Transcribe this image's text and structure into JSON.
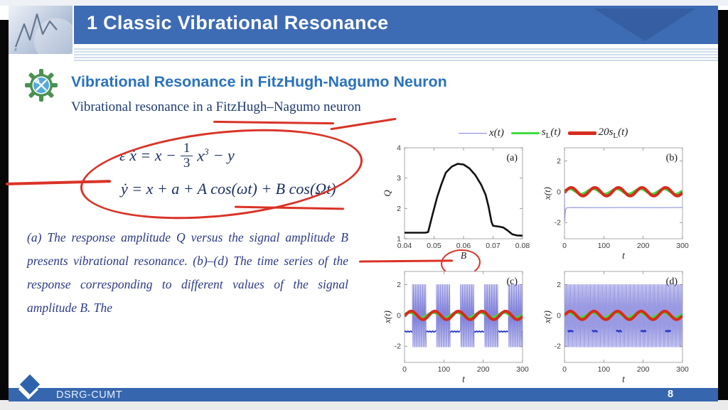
{
  "header": {
    "title": "1 Classic Vibrational Resonance"
  },
  "section": {
    "heading": "Vibrational Resonance in FitzHugh-Nagumo Neuron",
    "subheading": "Vibrational resonance in a FitzHugh–Nagumo neuron"
  },
  "equations": {
    "eq1_pre": "ε ẋ = x −",
    "eq1_num": "1",
    "eq1_den": "3",
    "eq1_base": "x",
    "eq1_sup": "3",
    "eq1_post": "− y",
    "eq2": "ẏ = x + a + A cos(ωt) + B cos(Ωt)"
  },
  "caption": "(a) The response amplitude Q versus the signal amplitude B presents vibrational resonance. (b)–(d) The time series of the response corresponding to different values of the signal amplitude B. The",
  "footer": {
    "label": "DSRG-CUMT",
    "page": "8"
  },
  "colors": {
    "header_blue": "#3e6cb4",
    "heading_blue": "#2a72be",
    "text_navy": "#1c3060",
    "caption_navy": "#2c3a85",
    "annotation_red": "#d93327",
    "footer_blue": "#3566ae",
    "series_blue": "#8585dc",
    "series_green": "#3edc3e",
    "series_red": "#d62d1e"
  },
  "legend": {
    "entries": [
      {
        "label": "x(t)",
        "color": "#8585dc",
        "width": 1.5
      },
      {
        "pre": "s",
        "sub": "L",
        "post": "(t)",
        "color": "#3edc3e",
        "width": 3.5
      },
      {
        "pre": "20s",
        "sub": "L",
        "post": "(t)",
        "color": "#d62d1e",
        "width": 4.5
      }
    ]
  },
  "chart_data": [
    {
      "id": "a",
      "type": "line",
      "panel_label": "(a)",
      "xlabel": "B",
      "ylabel": "Q",
      "xlim": [
        0.04,
        0.08
      ],
      "ylim": [
        1,
        4
      ],
      "xticks": [
        0.04,
        0.05,
        0.06,
        0.07,
        0.08
      ],
      "xtick_labels": [
        "0.04",
        "0.05",
        "0.06",
        "0.07",
        "0.08"
      ],
      "yticks": [
        1,
        2,
        3,
        4
      ],
      "ytick_labels": [
        "1",
        "2",
        "3",
        "4"
      ],
      "grid": false,
      "legend_position": "none",
      "series": [
        {
          "name": "Q vs B",
          "kind": "points",
          "color": "#111111",
          "width": 2.6,
          "x": [
            0.04,
            0.044,
            0.047,
            0.048,
            0.0495,
            0.051,
            0.0525,
            0.054,
            0.056,
            0.058,
            0.06,
            0.062,
            0.064,
            0.066,
            0.0675,
            0.0685,
            0.0695,
            0.07,
            0.072,
            0.0735,
            0.075,
            0.0765,
            0.078,
            0.08
          ],
          "y": [
            1.2,
            1.2,
            1.2,
            1.22,
            1.8,
            2.35,
            2.8,
            3.18,
            3.38,
            3.47,
            3.45,
            3.32,
            3.1,
            2.78,
            2.45,
            2.05,
            1.55,
            1.43,
            1.4,
            1.37,
            1.27,
            1.15,
            1.11,
            1.1
          ]
        }
      ]
    },
    {
      "id": "b",
      "type": "line",
      "panel_label": "(b)",
      "xlabel": "t",
      "ylabel": "x(t)",
      "xlim": [
        0,
        300
      ],
      "ylim": [
        -3.05,
        2.85
      ],
      "xticks": [
        0,
        100,
        200,
        300
      ],
      "xtick_labels": [
        "0",
        "100",
        "200",
        "300"
      ],
      "yticks": [
        -2,
        0,
        2
      ],
      "ytick_labels": [
        "-2",
        "0",
        "2"
      ],
      "grid": false,
      "legend_position": "none",
      "series": [
        {
          "name": "x(t)",
          "kind": "points",
          "color": "#8585dc",
          "width": 1,
          "x": [
            0,
            0.7,
            1.5,
            2.5,
            4,
            8,
            20,
            80,
            150,
            220,
            300
          ],
          "y": [
            -0.05,
            -1.88,
            -1.5,
            -1.2,
            -1.08,
            -1.03,
            -1.02,
            -1.03,
            -1.02,
            -1.03,
            -1.02
          ]
        },
        {
          "name": "sL(t)",
          "kind": "sine",
          "color": "#3edc3e",
          "width": 3.2,
          "amp": 0.16,
          "period": 60,
          "peak": 12,
          "mean": 0.02
        },
        {
          "name": "20sL(t)",
          "kind": "sine",
          "color": "#d62d1e",
          "width": 4.2,
          "amp": 0.27,
          "period": 60,
          "peak": 17,
          "mean": 0
        }
      ]
    },
    {
      "id": "c",
      "type": "line",
      "panel_label": "(c)",
      "xlabel": "t",
      "ylabel": "x(t)",
      "xlim": [
        0,
        300
      ],
      "ylim": [
        -3.05,
        2.85
      ],
      "xticks": [
        0,
        100,
        200,
        300
      ],
      "xtick_labels": [
        "0",
        "100",
        "200",
        "300"
      ],
      "yticks": [
        -2,
        0,
        2
      ],
      "ytick_labels": [
        "-2",
        "0",
        "2"
      ],
      "grid": false,
      "legend_position": "none",
      "series": [
        {
          "name": "x(t) quiescent baseline",
          "kind": "baseline",
          "color": "#2b3bc8",
          "width": 1.8,
          "y": -1.05,
          "segments": [
            [
              0,
              20
            ],
            [
              54,
              81
            ],
            [
              115,
              142
            ],
            [
              176,
              203
            ],
            [
              237,
              264
            ],
            [
              298,
              300
            ]
          ]
        },
        {
          "name": "x(t) spiking bursts",
          "kind": "bursts",
          "color": "#8585dc",
          "width": 0.8,
          "intervals": [
            [
              20,
              54
            ],
            [
              81,
              115
            ],
            [
              142,
              176
            ],
            [
              203,
              237
            ],
            [
              264,
              298
            ]
          ],
          "ymin": -2.05,
          "ymax": 2.0,
          "step": 2.6
        },
        {
          "name": "sL(t)",
          "kind": "sine",
          "color": "#3edc3e",
          "width": 3.2,
          "amp": 0.16,
          "period": 60,
          "peak": 12,
          "mean": 0.02
        },
        {
          "name": "20sL(t)",
          "kind": "sine",
          "color": "#d62d1e",
          "width": 4.2,
          "amp": 0.27,
          "period": 60,
          "peak": 17,
          "mean": 0
        }
      ]
    },
    {
      "id": "d",
      "type": "line",
      "panel_label": "(d)",
      "xlabel": "t",
      "ylabel": "x(t)",
      "xlim": [
        0,
        300
      ],
      "ylim": [
        -3.05,
        2.85
      ],
      "xticks": [
        0,
        100,
        200,
        300
      ],
      "xtick_labels": [
        "0",
        "100",
        "200",
        "300"
      ],
      "yticks": [
        -2,
        0,
        2
      ],
      "ytick_labels": [
        "-2",
        "0",
        "2"
      ],
      "grid": false,
      "legend_position": "none",
      "series": [
        {
          "name": "x(t) continuous spiking",
          "kind": "spikes",
          "color": "#9a9ae2",
          "width": 0.8,
          "range": [
            0,
            300
          ],
          "ymin": -2.05,
          "ymax": 2.0,
          "step": 2.2
        },
        {
          "name": "x(t) subthreshold segments",
          "kind": "dashes",
          "color": "#2b3bc8",
          "width": 2.4,
          "y": -1.02,
          "segments": [
            [
              8,
              22
            ],
            [
              70,
              84
            ],
            [
              132,
              146
            ],
            [
              194,
              208
            ],
            [
              256,
              270
            ]
          ]
        },
        {
          "name": "sL(t)",
          "kind": "sine",
          "color": "#3edc3e",
          "width": 3.2,
          "amp": 0.16,
          "period": 60,
          "peak": 10,
          "mean": 0.02
        },
        {
          "name": "20sL(t)",
          "kind": "sine",
          "color": "#d62d1e",
          "width": 4.2,
          "amp": 0.27,
          "period": 60,
          "peak": 15,
          "mean": 0
        }
      ]
    }
  ]
}
